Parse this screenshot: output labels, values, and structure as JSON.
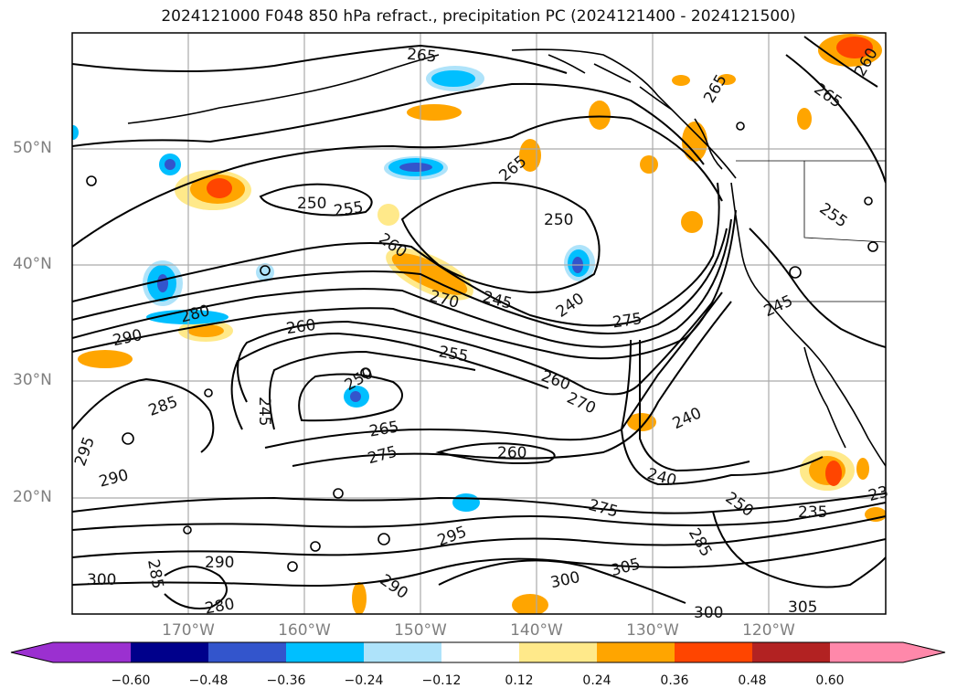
{
  "title": "2024121000 F048 850 hPa refract., precipitation PC (2024121400 - 2024121500)",
  "lat_labels": [
    "50°N",
    "40°N",
    "30°N",
    "20°N"
  ],
  "lon_labels": [
    "170°W",
    "160°W",
    "150°W",
    "140°W",
    "130°W",
    "120°W"
  ],
  "contour_labels": [
    "265",
    "250",
    "255",
    "250",
    "265",
    "260",
    "270",
    "245",
    "240",
    "275",
    "280",
    "290",
    "260",
    "255",
    "250",
    "245",
    "265",
    "275",
    "260",
    "260",
    "270",
    "240",
    "285",
    "295",
    "290",
    "240",
    "250",
    "275",
    "235",
    "285",
    "295",
    "290",
    "290",
    "300",
    "305",
    "300",
    "285",
    "280",
    "300",
    "305",
    "265",
    "260",
    "265",
    "255",
    "245",
    "23"
  ],
  "colorbar": {
    "tick_labels": [
      "−0.60",
      "−0.48",
      "−0.36",
      "−0.24",
      "−0.12",
      "0.12",
      "0.24",
      "0.36",
      "0.48",
      "0.60"
    ],
    "colors": [
      "#9b30d0",
      "#00008b",
      "#3355cc",
      "#00bfff",
      "#aee3fa",
      "#ffffff",
      "#ffe98a",
      "#ffa500",
      "#ff4500",
      "#b22222",
      "#ff88aa"
    ]
  },
  "colors": {
    "frame": "#000000",
    "grid": "#aaaaaa",
    "contour": "#000000"
  }
}
